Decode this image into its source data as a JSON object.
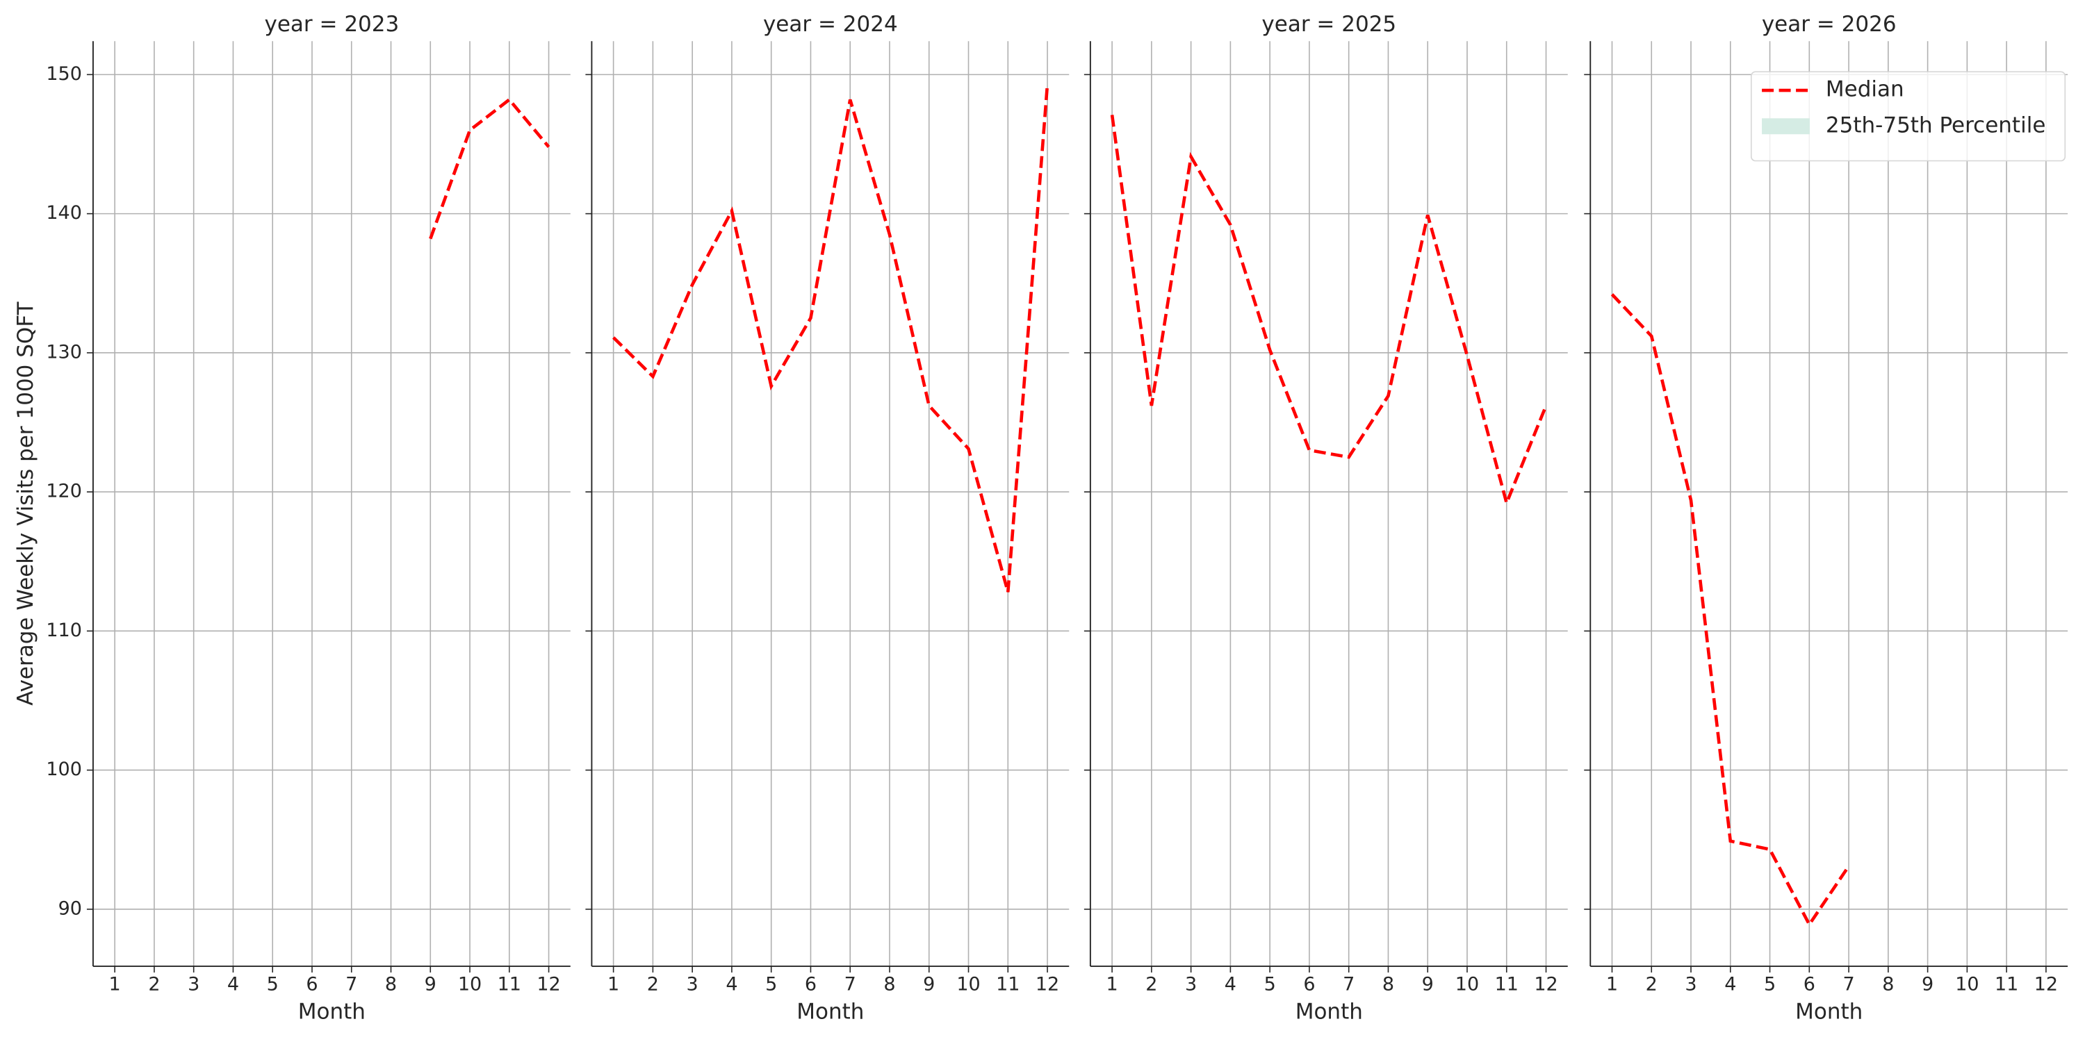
{
  "chart_data": [
    {
      "type": "line",
      "title": "year = 2023",
      "xlabel": "Month",
      "ylabel": "Average Weekly Visits per 1000 SQFT",
      "x": [
        9,
        10,
        11,
        12
      ],
      "series": [
        {
          "name": "Median",
          "color": "#ff0000",
          "style": "dashed",
          "values": [
            138.2,
            146.0,
            148.2,
            144.8
          ]
        }
      ],
      "xlim": [
        0.45,
        12.55
      ],
      "xticks": [
        1,
        2,
        3,
        4,
        5,
        6,
        7,
        8,
        9,
        10,
        11,
        12
      ],
      "ylim": [
        85.9,
        152.4
      ],
      "yticks": [
        90,
        100,
        110,
        120,
        130,
        140,
        150
      ],
      "ytick_labels": true,
      "grid": true
    },
    {
      "type": "line",
      "title": "year = 2024",
      "xlabel": "Month",
      "x": [
        1,
        2,
        3,
        4,
        5,
        6,
        7,
        8,
        9,
        10,
        11,
        12
      ],
      "series": [
        {
          "name": "Median",
          "color": "#ff0000",
          "style": "dashed",
          "values": [
            131.1,
            128.3,
            134.9,
            140.2,
            127.6,
            132.5,
            148.2,
            138.5,
            126.2,
            123.1,
            112.8,
            149.3
          ]
        }
      ],
      "xlim": [
        0.45,
        12.55
      ],
      "xticks": [
        1,
        2,
        3,
        4,
        5,
        6,
        7,
        8,
        9,
        10,
        11,
        12
      ],
      "ylim": [
        85.9,
        152.4
      ],
      "yticks": [
        90,
        100,
        110,
        120,
        130,
        140,
        150
      ],
      "ytick_labels": false,
      "grid": true
    },
    {
      "type": "line",
      "title": "year = 2025",
      "xlabel": "Month",
      "x": [
        1,
        2,
        3,
        4,
        5,
        6,
        7,
        8,
        9,
        10,
        11,
        12
      ],
      "series": [
        {
          "name": "Median",
          "color": "#ff0000",
          "style": "dashed",
          "values": [
            147.1,
            126.2,
            144.1,
            139.2,
            130.2,
            123.0,
            122.5,
            126.9,
            139.9,
            129.8,
            119.2,
            126.2
          ]
        }
      ],
      "xlim": [
        0.45,
        12.55
      ],
      "xticks": [
        1,
        2,
        3,
        4,
        5,
        6,
        7,
        8,
        9,
        10,
        11,
        12
      ],
      "ylim": [
        85.9,
        152.4
      ],
      "yticks": [
        90,
        100,
        110,
        120,
        130,
        140,
        150
      ],
      "ytick_labels": false,
      "grid": true
    },
    {
      "type": "line",
      "title": "year = 2026",
      "xlabel": "Month",
      "x": [
        1,
        2,
        3,
        4,
        5,
        6,
        7
      ],
      "series": [
        {
          "name": "Median",
          "color": "#ff0000",
          "style": "dashed",
          "values": [
            134.2,
            131.2,
            119.4,
            94.9,
            94.3,
            88.9,
            93.1
          ]
        }
      ],
      "xlim": [
        0.45,
        12.55
      ],
      "xticks": [
        1,
        2,
        3,
        4,
        5,
        6,
        7,
        8,
        9,
        10,
        11,
        12
      ],
      "ylim": [
        85.9,
        152.4
      ],
      "yticks": [
        90,
        100,
        110,
        120,
        130,
        140,
        150
      ],
      "ytick_labels": false,
      "grid": true,
      "legend": {
        "loc": "upper right",
        "entries": [
          {
            "name": "Median",
            "color": "#ff0000",
            "style": "dashed"
          },
          {
            "name": "25th-75th Percentile",
            "color": "#d5ece4",
            "style": "patch"
          }
        ]
      }
    }
  ]
}
